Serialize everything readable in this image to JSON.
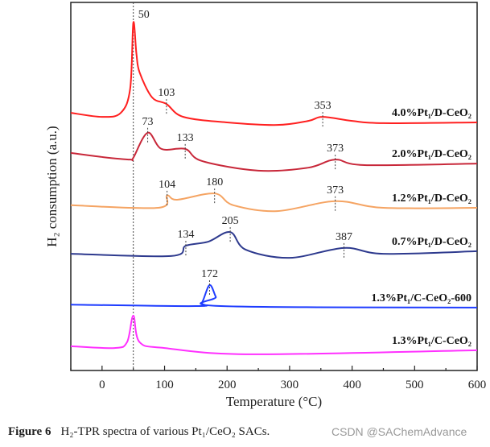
{
  "chart_data": {
    "type": "line",
    "xlabel": "Temperature (°C)",
    "ylabel": "H₂ consumption (a.u.)",
    "xlim": [
      -50,
      600
    ],
    "ylim": [
      0,
      100
    ],
    "xticks": [
      0,
      100,
      200,
      300,
      400,
      500,
      600
    ],
    "grid": false,
    "reference_line_x": 50,
    "series": [
      {
        "name": "4.0%Pt₁/D-CeO₂",
        "color": "#ff2020",
        "points": [
          [
            -50,
            70
          ],
          [
            0,
            68.9
          ],
          [
            30,
            70
          ],
          [
            45,
            76.6
          ],
          [
            50,
            94.5
          ],
          [
            55,
            86
          ],
          [
            60,
            81
          ],
          [
            80,
            74.2
          ],
          [
            103,
            72.4
          ],
          [
            130,
            68.9
          ],
          [
            200,
            67.4
          ],
          [
            280,
            66.7
          ],
          [
            330,
            67.8
          ],
          [
            353,
            68.9
          ],
          [
            400,
            67.8
          ],
          [
            450,
            67.2
          ],
          [
            600,
            67.4
          ]
        ],
        "peaks": [
          50,
          103,
          353
        ]
      },
      {
        "name": "2.0%Pt₁/D-CeO₂",
        "color": "#c8283a",
        "points": [
          [
            -50,
            59.1
          ],
          [
            0,
            58
          ],
          [
            45,
            57.3
          ],
          [
            50,
            57.8
          ],
          [
            73,
            64.6
          ],
          [
            95,
            60.2
          ],
          [
            133,
            60.2
          ],
          [
            160,
            56.9
          ],
          [
            250,
            54.3
          ],
          [
            330,
            55.1
          ],
          [
            373,
            57.3
          ],
          [
            420,
            55.8
          ],
          [
            600,
            56.2
          ]
        ],
        "peaks": [
          73,
          133,
          373
        ]
      },
      {
        "name": "1.2%Pt₁/D-CeO₂",
        "color": "#f5a463",
        "points": [
          [
            -50,
            44.9
          ],
          [
            90,
            44.2
          ],
          [
            104,
            47.5
          ],
          [
            120,
            46.4
          ],
          [
            180,
            48.1
          ],
          [
            210,
            44.9
          ],
          [
            280,
            43.3
          ],
          [
            373,
            46
          ],
          [
            450,
            44.2
          ],
          [
            600,
            44.2
          ]
        ],
        "peaks": [
          104,
          180,
          373
        ]
      },
      {
        "name": "0.7%Pt₁/D-CeO₂",
        "color": "#2e3a8e",
        "points": [
          [
            -50,
            31.7
          ],
          [
            110,
            31.1
          ],
          [
            134,
            33.9
          ],
          [
            170,
            35
          ],
          [
            205,
            37.6
          ],
          [
            230,
            32.8
          ],
          [
            300,
            30.6
          ],
          [
            387,
            33.3
          ],
          [
            450,
            31.7
          ],
          [
            600,
            32.4
          ]
        ],
        "peaks": [
          134,
          205,
          387
        ]
      },
      {
        "name": "1.3%Pt₁/C-CeO₂-600",
        "color": "#1e3cff",
        "points": [
          [
            -50,
            17.9
          ],
          [
            150,
            17.5
          ],
          [
            160,
            18.5
          ],
          [
            172,
            23.2
          ],
          [
            182,
            20
          ],
          [
            190,
            17.5
          ],
          [
            600,
            17.1
          ]
        ],
        "peaks": [
          172
        ]
      },
      {
        "name": "1.3%Pt₁/C-CeO₂",
        "color": "#ff30ff",
        "points": [
          [
            -50,
            6.6
          ],
          [
            20,
            6.1
          ],
          [
            40,
            7.7
          ],
          [
            50,
            14.9
          ],
          [
            60,
            7.7
          ],
          [
            100,
            6.1
          ],
          [
            240,
            4.4
          ],
          [
            600,
            5.5
          ]
        ],
        "peaks": []
      }
    ]
  },
  "caption": {
    "label": "Figure 6",
    "text": "H₂-TPR spectra of various Pt₁/CeO₂ SACs."
  },
  "watermark": "CSDN @SAChemAdvance"
}
